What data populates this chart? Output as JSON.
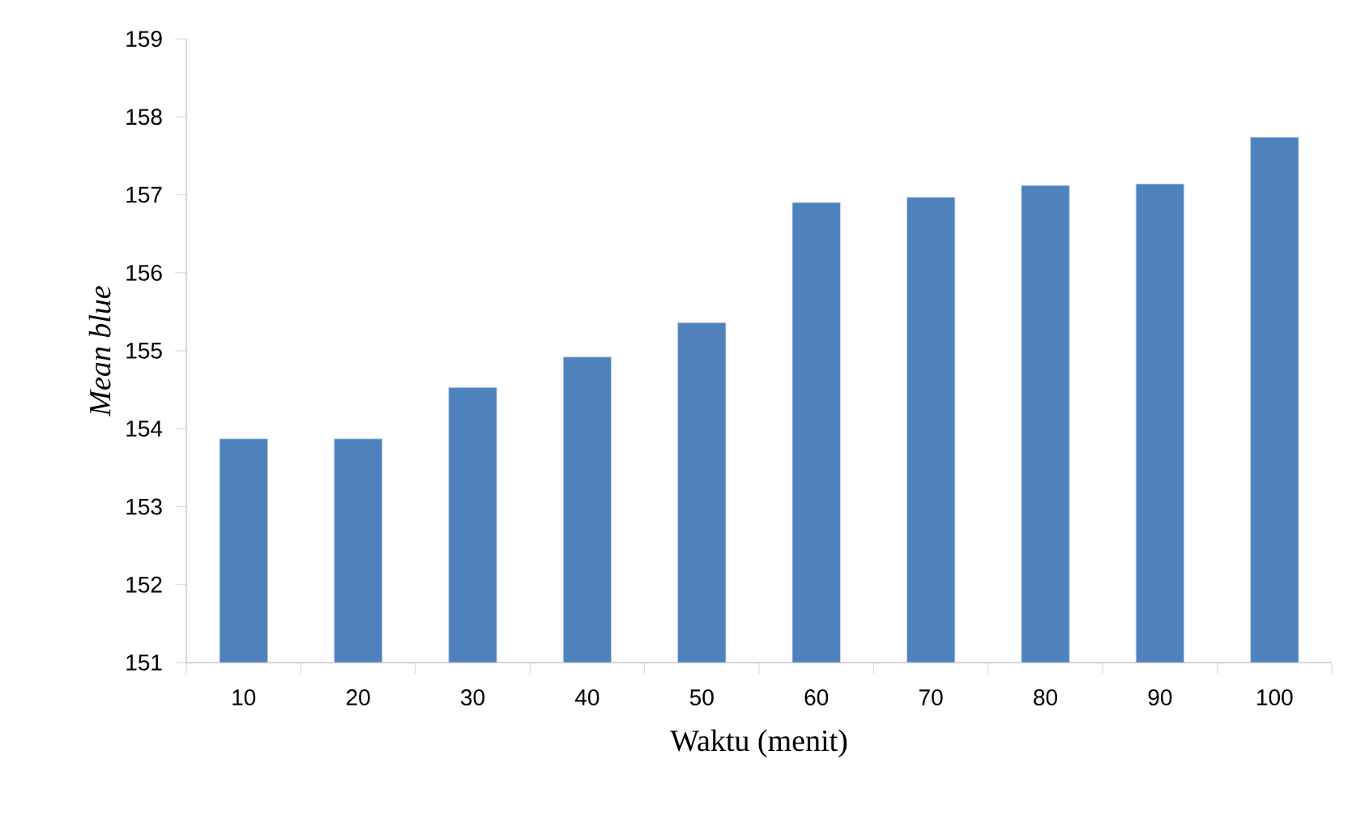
{
  "chart_data": {
    "type": "bar",
    "xlabel": "Waktu (menit)",
    "ylabel": "*Mean blue*",
    "categories": [
      "10",
      "20",
      "30",
      "40",
      "50",
      "60",
      "70",
      "80",
      "90",
      "100"
    ],
    "values": [
      153.87,
      153.87,
      154.53,
      154.92,
      155.36,
      156.9,
      156.97,
      157.12,
      157.14,
      157.74
    ],
    "color": "#4f81bd",
    "ylim": [
      151,
      159
    ],
    "yticks": [
      151,
      152,
      153,
      154,
      155,
      156,
      157,
      158,
      159
    ],
    "grid": false
  }
}
